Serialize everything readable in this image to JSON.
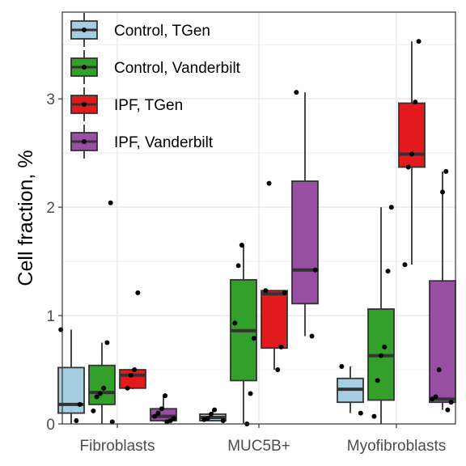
{
  "chart_data": {
    "type": "box",
    "ylabel": "Cell fraction, %",
    "xlabel": "",
    "ylim": [
      0,
      3.8
    ],
    "yticks": [
      0,
      1,
      2,
      3
    ],
    "grid": true,
    "legend_position": "top-left",
    "categories": [
      "Fibroblasts",
      "MUC5B+",
      "Myofibroblasts"
    ],
    "series": [
      {
        "name": "Control, TGen",
        "color": "#a6cee3",
        "boxes": [
          {
            "category": "Fibroblasts",
            "min": 0.0,
            "q1": 0.1,
            "median": 0.18,
            "q3": 0.52,
            "max": 0.87,
            "points": [
              0.87,
              0.18,
              0.03
            ]
          },
          {
            "category": "MUC5B+",
            "min": 0.03,
            "q1": 0.03,
            "median": 0.06,
            "q3": 0.09,
            "max": 0.13,
            "points": [
              0.13,
              0.09,
              0.05,
              0.04,
              0.03
            ]
          },
          {
            "category": "Myofibroblasts",
            "min": 0.1,
            "q1": 0.2,
            "median": 0.32,
            "q3": 0.42,
            "max": 0.53,
            "points": [
              0.53,
              0.1
            ]
          }
        ]
      },
      {
        "name": "Control, Vanderbilt",
        "color": "#33a02c",
        "boxes": [
          {
            "category": "Fibroblasts",
            "min": 0.0,
            "q1": 0.18,
            "median": 0.29,
            "q3": 0.54,
            "max": 0.75,
            "points": [
              2.04,
              0.75,
              0.33,
              0.28,
              0.25,
              0.12,
              0.02
            ]
          },
          {
            "category": "MUC5B+",
            "min": 0.0,
            "q1": 0.4,
            "median": 0.86,
            "q3": 1.33,
            "max": 1.65,
            "points": [
              1.65,
              1.46,
              0.93,
              0.79,
              0.28,
              0.0
            ]
          },
          {
            "category": "Myofibroblasts",
            "min": 0.0,
            "q1": 0.22,
            "median": 0.63,
            "q3": 1.06,
            "max": 2.0,
            "points": [
              2.0,
              1.41,
              0.71,
              0.63,
              0.4,
              0.07
            ]
          }
        ]
      },
      {
        "name": "IPF, TGen",
        "color": "#e31a1c",
        "boxes": [
          {
            "category": "Fibroblasts",
            "min": 0.32,
            "q1": 0.33,
            "median": 0.45,
            "q3": 0.5,
            "max": 0.5,
            "points": [
              1.21,
              0.5,
              0.45,
              0.33
            ]
          },
          {
            "category": "MUC5B+",
            "min": 0.5,
            "q1": 0.7,
            "median": 1.2,
            "q3": 1.23,
            "max": 1.23,
            "points": [
              2.22,
              1.23,
              1.21,
              0.71,
              0.5
            ]
          },
          {
            "category": "Myofibroblasts",
            "min": 1.47,
            "q1": 2.37,
            "median": 2.49,
            "q3": 2.96,
            "max": 3.53,
            "points": [
              3.53,
              2.97,
              2.49,
              2.37,
              1.47
            ]
          }
        ]
      },
      {
        "name": "IPF, Vanderbilt",
        "color": "#984ea3",
        "boxes": [
          {
            "category": "Fibroblasts",
            "min": 0.02,
            "q1": 0.03,
            "median": 0.07,
            "q3": 0.14,
            "max": 0.26,
            "points": [
              0.26,
              0.14,
              0.1,
              0.07,
              0.05,
              0.03,
              0.02
            ]
          },
          {
            "category": "MUC5B+",
            "min": 0.81,
            "q1": 1.11,
            "median": 1.42,
            "q3": 2.24,
            "max": 3.06,
            "points": [
              3.06,
              1.42,
              0.81
            ]
          },
          {
            "category": "Myofibroblasts",
            "min": 0.13,
            "q1": 0.2,
            "median": 0.23,
            "q3": 1.32,
            "max": 2.33,
            "points": [
              2.33,
              2.14,
              0.5,
              0.25,
              0.23,
              0.2,
              0.13
            ]
          }
        ]
      }
    ]
  }
}
